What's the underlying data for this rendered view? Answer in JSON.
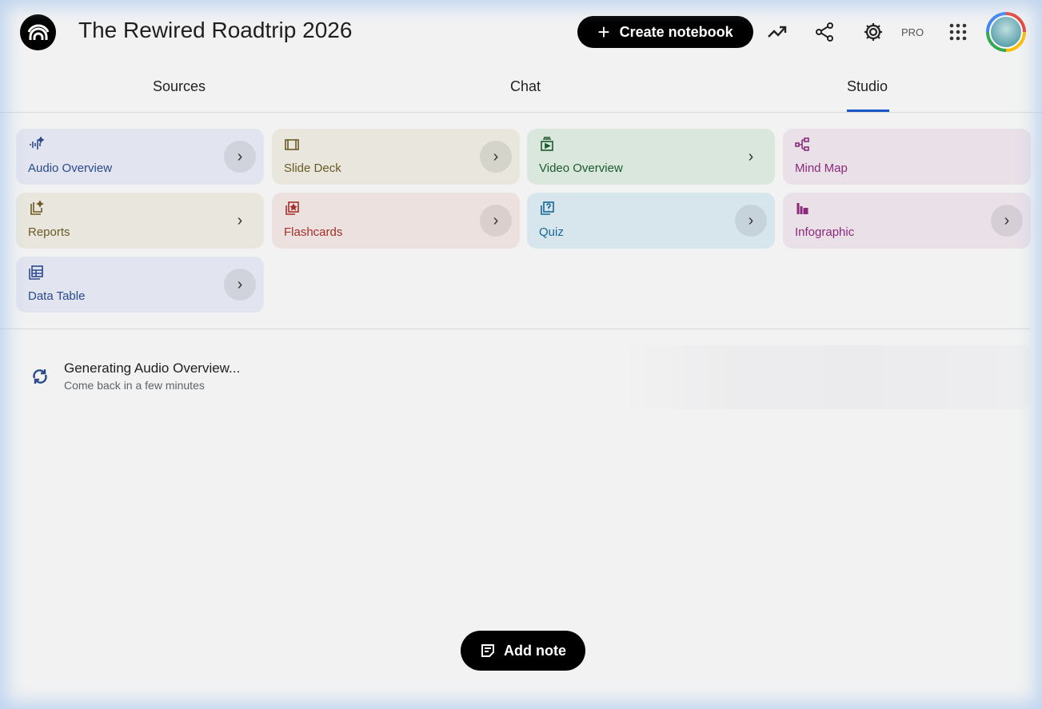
{
  "header": {
    "title": "The Rewired Roadtrip 2026",
    "create_label": "Create notebook",
    "pro_label": "PRO"
  },
  "tabs": [
    {
      "label": "Sources"
    },
    {
      "label": "Chat"
    },
    {
      "label": "Studio",
      "active": true
    }
  ],
  "studio": {
    "cards": [
      {
        "label": "Audio Overview",
        "icon": "audio-waveform-sparkle-icon",
        "bg": "#e2e4ef",
        "color": "#2b4a8c"
      },
      {
        "label": "Slide Deck",
        "icon": "slides-icon",
        "bg": "#e8e6dd",
        "color": "#6b5a25"
      },
      {
        "label": "Video Overview",
        "icon": "video-icon",
        "bg": "#d9e7dc",
        "color": "#1d5a2e"
      },
      {
        "label": "Mind Map",
        "icon": "mind-map-icon",
        "bg": "#e9e0e8",
        "color": "#8b2a7c"
      },
      {
        "label": "Reports",
        "icon": "reports-icon",
        "bg": "#e8e6dd",
        "color": "#6b5a25"
      },
      {
        "label": "Flashcards",
        "icon": "flashcards-icon",
        "bg": "#ede1df",
        "color": "#a3302c"
      },
      {
        "label": "Quiz",
        "icon": "quiz-icon",
        "bg": "#d7e5ed",
        "color": "#17689a"
      },
      {
        "label": "Infographic",
        "icon": "infographic-icon",
        "bg": "#e9e0e8",
        "color": "#8b2a7c"
      },
      {
        "label": "Data Table",
        "icon": "data-table-icon",
        "bg": "#e2e4ef",
        "color": "#2b4a8c"
      }
    ]
  },
  "generating": {
    "title": "Generating Audio Overview...",
    "subtitle": "Come back in a few minutes"
  },
  "add_note_label": "Add note",
  "accent": "#1a56c8"
}
